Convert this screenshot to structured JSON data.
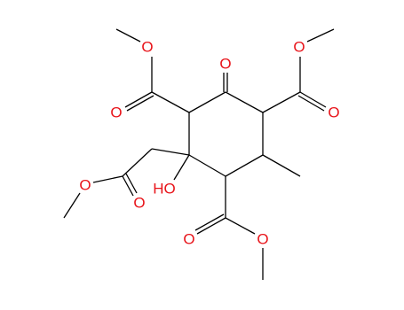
{
  "atoms": [
    {
      "label": "O"
    },
    {
      "label": "O"
    },
    {
      "label": "O"
    },
    {
      "label": "O"
    },
    {
      "label": "O"
    },
    {
      "label": "O"
    },
    {
      "label": "O"
    },
    {
      "label": "HO"
    },
    {
      "label": "O"
    },
    {
      "label": "O"
    }
  ]
}
